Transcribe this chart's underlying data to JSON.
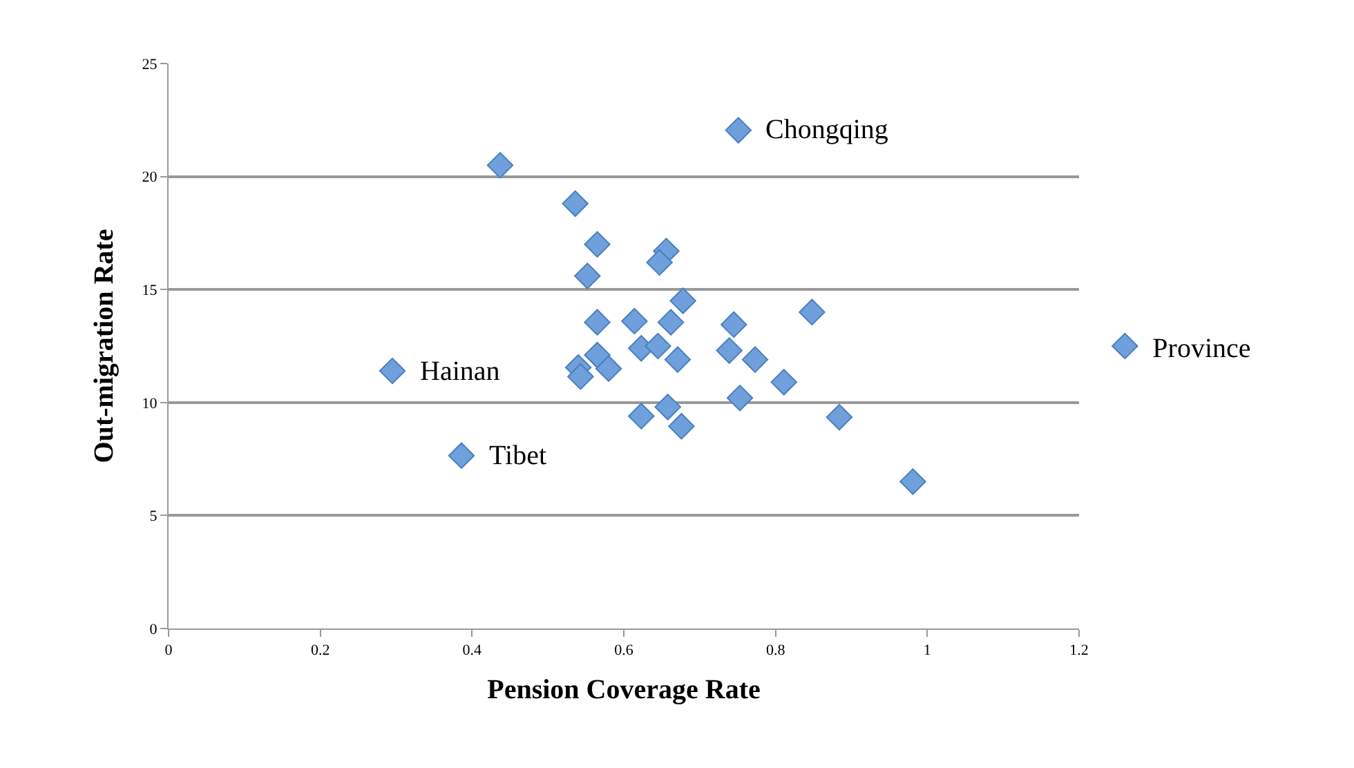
{
  "chart_data": {
    "type": "scatter",
    "xlabel": "Pension Coverage Rate",
    "ylabel": "Out-migration Rate",
    "x": [
      0.437,
      0.536,
      0.565,
      0.552,
      0.656,
      0.647,
      0.678,
      0.565,
      0.614,
      0.662,
      0.565,
      0.623,
      0.645,
      0.671,
      0.58,
      0.54,
      0.543,
      0.295,
      0.386,
      0.623,
      0.658,
      0.676,
      0.751,
      0.745,
      0.739,
      0.773,
      0.811,
      0.753,
      0.848,
      0.884,
      0.981
    ],
    "series": [
      {
        "name": "Province",
        "color": "#6fa0dc",
        "values": [
          20.5,
          18.8,
          17.0,
          15.6,
          16.7,
          16.2,
          14.5,
          13.55,
          13.6,
          13.55,
          12.1,
          12.4,
          12.5,
          11.9,
          11.5,
          11.55,
          11.15,
          11.4,
          7.65,
          9.4,
          9.8,
          8.95,
          22.05,
          13.45,
          12.3,
          11.9,
          10.9,
          10.2,
          14.0,
          9.35,
          6.5
        ]
      }
    ],
    "annotations": [
      {
        "text": "Chongqing",
        "x": 0.751,
        "y": 22.05
      },
      {
        "text": "Hainan",
        "x": 0.295,
        "y": 11.4
      },
      {
        "text": "Tibet",
        "x": 0.386,
        "y": 7.65
      }
    ],
    "xlim": [
      0,
      1.2
    ],
    "xticks": [
      0,
      0.2,
      0.4,
      0.6,
      0.8,
      1,
      1.2
    ],
    "ylim": [
      0,
      25
    ],
    "yticks": [
      0,
      5,
      10,
      15,
      20,
      25
    ],
    "grid": "y",
    "legend": "right",
    "marker": "diamond"
  }
}
